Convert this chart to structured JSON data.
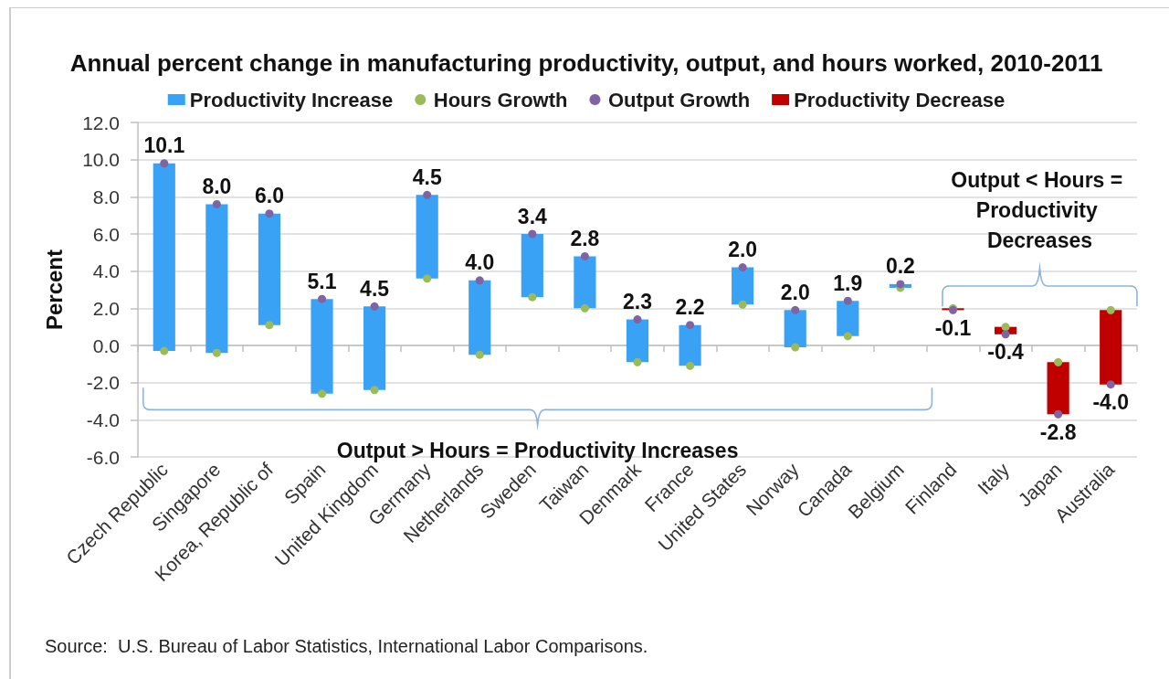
{
  "chart_data": {
    "type": "bar",
    "title": "Annual percent change in manufacturing productivity, output, and hours worked, 2010-2011",
    "ylabel": "Percent",
    "categories": [
      "Czech Republic",
      "Singapore",
      "Korea, Republic of",
      "Spain",
      "United Kingdom",
      "Germany",
      "Netherlands",
      "Sweden",
      "Taiwan",
      "Denmark",
      "France",
      "United States",
      "Norway",
      "Canada",
      "Belgium",
      "Finland",
      "Italy",
      "Japan",
      "Australia"
    ],
    "series": [
      {
        "name": "Productivity Increase",
        "color": "#3aa2f5",
        "base": [
          -0.3,
          -0.4,
          1.1,
          -2.6,
          -2.4,
          3.6,
          -0.5,
          2.6,
          2.0,
          -0.9,
          -1.1,
          2.2,
          -0.1,
          0.5,
          3.1,
          null,
          null,
          null,
          null
        ],
        "values": [
          10.1,
          8.0,
          6.0,
          5.1,
          4.5,
          4.5,
          4.0,
          3.4,
          2.8,
          2.3,
          2.2,
          2.0,
          2.0,
          1.9,
          0.2,
          null,
          null,
          null,
          null
        ],
        "value_labels": [
          "10.1",
          "8.0",
          "6.0",
          "5.1",
          "4.5",
          "4.5",
          "4.0",
          "3.4",
          "2.8",
          "2.3",
          "2.2",
          "2.0",
          "2.0",
          "1.9",
          "0.2",
          null,
          null,
          null,
          null
        ]
      },
      {
        "name": "Hours Growth",
        "type": "scatter",
        "color": "#9bbb59",
        "values": [
          -0.3,
          -0.4,
          1.1,
          -2.6,
          -2.4,
          3.6,
          -0.5,
          2.6,
          2.0,
          -0.9,
          -1.1,
          2.2,
          -0.1,
          0.5,
          3.1,
          2.0,
          1.0,
          -0.9,
          1.9
        ]
      },
      {
        "name": "Output Growth",
        "type": "scatter",
        "color": "#8064a2",
        "values": [
          9.8,
          7.6,
          7.1,
          2.5,
          2.1,
          8.1,
          3.5,
          6.0,
          4.8,
          1.4,
          1.1,
          4.2,
          1.9,
          2.4,
          3.3,
          1.9,
          0.6,
          -3.7,
          -2.1
        ]
      },
      {
        "name": "Productivity Decrease",
        "color": "#c00000",
        "base": [
          null,
          null,
          null,
          null,
          null,
          null,
          null,
          null,
          null,
          null,
          null,
          null,
          null,
          null,
          null,
          2.0,
          1.0,
          -0.9,
          1.9
        ],
        "values": [
          null,
          null,
          null,
          null,
          null,
          null,
          null,
          null,
          null,
          null,
          null,
          null,
          null,
          null,
          null,
          -0.1,
          -0.4,
          -2.8,
          -4.0
        ],
        "value_labels": [
          null,
          null,
          null,
          null,
          null,
          null,
          null,
          null,
          null,
          null,
          null,
          null,
          null,
          null,
          null,
          "-0.1",
          "-0.4",
          "-2.8",
          "-4.0"
        ]
      }
    ],
    "ylim": [
      -6,
      12
    ],
    "yticks": [
      {
        "value": -6,
        "label": "-6.0"
      },
      {
        "value": -4,
        "label": "-4.0"
      },
      {
        "value": -2,
        "label": "-2.0"
      },
      {
        "value": 0,
        "label": "0.0"
      },
      {
        "value": 2,
        "label": "2.0"
      },
      {
        "value": 4,
        "label": "4.0"
      },
      {
        "value": 6,
        "label": "6.0"
      },
      {
        "value": 8,
        "label": "8.0"
      },
      {
        "value": 10,
        "label": "10.0"
      },
      {
        "value": 12,
        "label": "12.0"
      }
    ],
    "grid": "y",
    "legend": "top",
    "marker": "circle",
    "annotations": [
      "Output > Hours = Productivity Increases",
      "Output < Hours = Productivity Decreases",
      "Source:  U.S. Bureau of Labor Statistics, International Labor Comparisons."
    ]
  }
}
